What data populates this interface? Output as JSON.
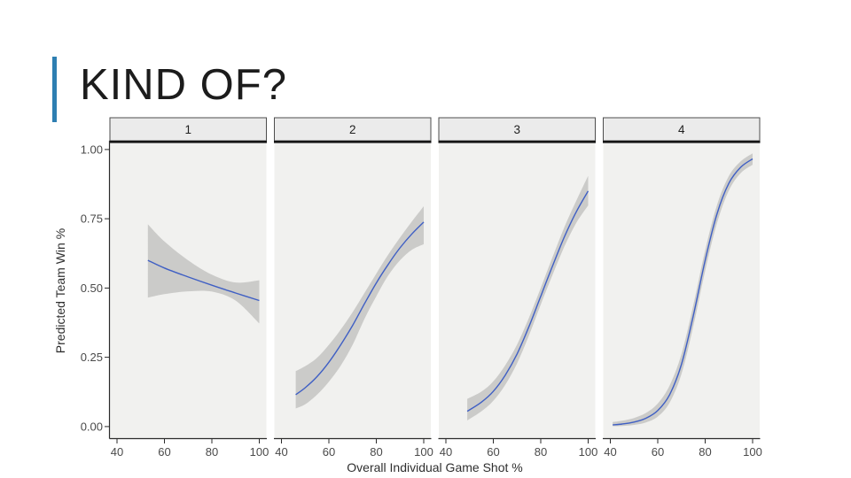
{
  "slide": {
    "title": "KIND OF?",
    "accent_color": "#2E7FB2",
    "background": "#FFFFFF"
  },
  "chart_data": {
    "type": "line",
    "faceted": true,
    "title": "",
    "xlabel": "Overall Individual Game Shot %",
    "ylabel": "Predicted Team Win %",
    "facet_labels": [
      "1",
      "2",
      "3",
      "4"
    ],
    "xticks": [
      40,
      60,
      80,
      100
    ],
    "ytick_labels": [
      "0.00",
      "0.25",
      "0.50",
      "0.75",
      "1.00"
    ],
    "yticks": [
      0.0,
      0.25,
      0.5,
      0.75,
      1.0
    ],
    "xlim": [
      37,
      103
    ],
    "ylim": [
      -0.042,
      1.022
    ],
    "grid": "off",
    "legend": "none",
    "colors": {
      "line": "#3F5FC4",
      "band": "#CBCBC9",
      "panel_bg": "#F1F1EF",
      "strip_bg": "#EBEBEB",
      "strip_border": "#4D4D4D",
      "strip_underline": "#141414",
      "axis_line": "#2B2B2B",
      "tick_label": "#4A4A4A",
      "axis_title": "#2F2F2F",
      "strip_label": "#1F1F1F"
    },
    "series": [
      {
        "facet": "1",
        "x": [
          53,
          60,
          70,
          80,
          90,
          100
        ],
        "y": [
          0.6,
          0.572,
          0.54,
          0.51,
          0.482,
          0.455
        ],
        "ci_upper": [
          0.73,
          0.668,
          0.6,
          0.548,
          0.52,
          0.528
        ],
        "ci_lower": [
          0.465,
          0.478,
          0.488,
          0.487,
          0.455,
          0.372
        ]
      },
      {
        "facet": "2",
        "x": [
          46,
          50,
          55,
          60,
          65,
          70,
          75,
          80,
          85,
          90,
          95,
          100
        ],
        "y": [
          0.115,
          0.14,
          0.18,
          0.232,
          0.295,
          0.365,
          0.443,
          0.518,
          0.585,
          0.645,
          0.695,
          0.738
        ],
        "ci_upper": [
          0.2,
          0.218,
          0.248,
          0.295,
          0.35,
          0.413,
          0.482,
          0.552,
          0.62,
          0.682,
          0.74,
          0.795
        ],
        "ci_lower": [
          0.065,
          0.08,
          0.115,
          0.162,
          0.22,
          0.295,
          0.388,
          0.47,
          0.545,
          0.6,
          0.638,
          0.658
        ]
      },
      {
        "facet": "3",
        "x": [
          49,
          55,
          60,
          65,
          70,
          75,
          80,
          85,
          90,
          95,
          100
        ],
        "y": [
          0.055,
          0.088,
          0.127,
          0.185,
          0.262,
          0.36,
          0.47,
          0.58,
          0.685,
          0.775,
          0.85
        ],
        "ci_upper": [
          0.1,
          0.126,
          0.163,
          0.221,
          0.296,
          0.392,
          0.5,
          0.612,
          0.72,
          0.815,
          0.905
        ],
        "ci_lower": [
          0.022,
          0.055,
          0.093,
          0.15,
          0.228,
          0.328,
          0.44,
          0.548,
          0.65,
          0.735,
          0.798
        ]
      },
      {
        "facet": "4",
        "x": [
          41,
          45,
          50,
          55,
          60,
          65,
          70,
          75,
          80,
          85,
          90,
          95,
          100
        ],
        "y": [
          0.006,
          0.009,
          0.016,
          0.03,
          0.058,
          0.115,
          0.225,
          0.4,
          0.6,
          0.768,
          0.878,
          0.936,
          0.966
        ],
        "ci_upper": [
          0.016,
          0.021,
          0.031,
          0.049,
          0.083,
          0.148,
          0.262,
          0.438,
          0.636,
          0.8,
          0.904,
          0.957,
          0.986
        ],
        "ci_lower": [
          0.001,
          0.002,
          0.006,
          0.015,
          0.036,
          0.086,
          0.19,
          0.362,
          0.562,
          0.735,
          0.852,
          0.915,
          0.945
        ]
      }
    ]
  }
}
